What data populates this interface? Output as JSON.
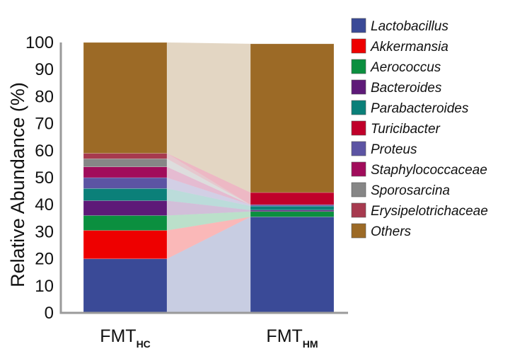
{
  "chart_data": {
    "type": "bar",
    "subtype": "stacked-100-with-connectors",
    "ylabel": "Relative Abundance (%)",
    "ylim": [
      0,
      100
    ],
    "yticks": [
      "0",
      "10",
      "20",
      "30",
      "40",
      "50",
      "60",
      "70",
      "80",
      "90",
      "100"
    ],
    "categories": [
      {
        "main": "FMT",
        "sub": "HC"
      },
      {
        "main": "FMT",
        "sub": "HM"
      }
    ],
    "series": [
      {
        "name": "Lactobacillus",
        "color": "#3a4a97",
        "values": [
          20.0,
          35.5
        ]
      },
      {
        "name": "Akkermansia",
        "color": "#ee0000",
        "values": [
          10.5,
          0.0
        ]
      },
      {
        "name": "Aerococcus",
        "color": "#0b8f3f",
        "values": [
          5.5,
          2.0
        ]
      },
      {
        "name": "Bacteroides",
        "color": "#5e1a78",
        "values": [
          5.5,
          0.5
        ]
      },
      {
        "name": "Parabacteroides",
        "color": "#0b8079",
        "values": [
          4.5,
          1.5
        ]
      },
      {
        "name": "Turicibacter",
        "color": "#c0002a",
        "values": [
          0.0,
          4.5
        ]
      },
      {
        "name": "Proteus",
        "color": "#5c54a3",
        "values": [
          4.0,
          0.5
        ]
      },
      {
        "name": "Staphylococcaceae",
        "color": "#a10c5b",
        "values": [
          4.0,
          0.0
        ]
      },
      {
        "name": "Sporosarcina",
        "color": "#868686",
        "values": [
          3.0,
          0.0
        ]
      },
      {
        "name": "Erysipelotrichaceae",
        "color": "#a73a4f",
        "values": [
          2.0,
          0.0
        ]
      },
      {
        "name": "Others",
        "color": "#9c6a26",
        "values": [
          41.0,
          55.0
        ]
      }
    ],
    "legend": "right",
    "grid": false,
    "draw_order": [
      0,
      1,
      2,
      3,
      4,
      6,
      7,
      8,
      9,
      5,
      10
    ]
  }
}
